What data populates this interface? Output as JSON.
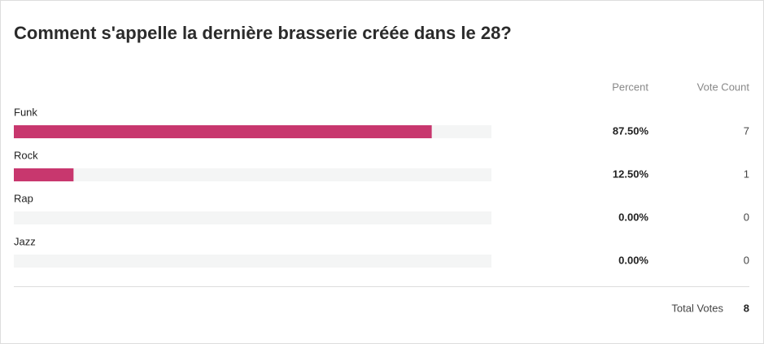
{
  "chart_data": {
    "type": "bar",
    "title": "Comment s'appelle la dernière brasserie créée dans le 28?",
    "percent_header": "Percent",
    "count_header": "Vote Count",
    "categories": [
      "Funk",
      "Rock",
      "Rap",
      "Jazz"
    ],
    "values": [
      87.5,
      12.5,
      0,
      0
    ],
    "value_labels": [
      "87.50%",
      "12.50%",
      "0.00%",
      "0.00%"
    ],
    "counts": [
      7,
      1,
      0,
      0
    ],
    "xlim": [
      0,
      100
    ],
    "color": "#c8376e",
    "track_color": "#f4f5f5",
    "total_label": "Total Votes",
    "total": 8
  }
}
